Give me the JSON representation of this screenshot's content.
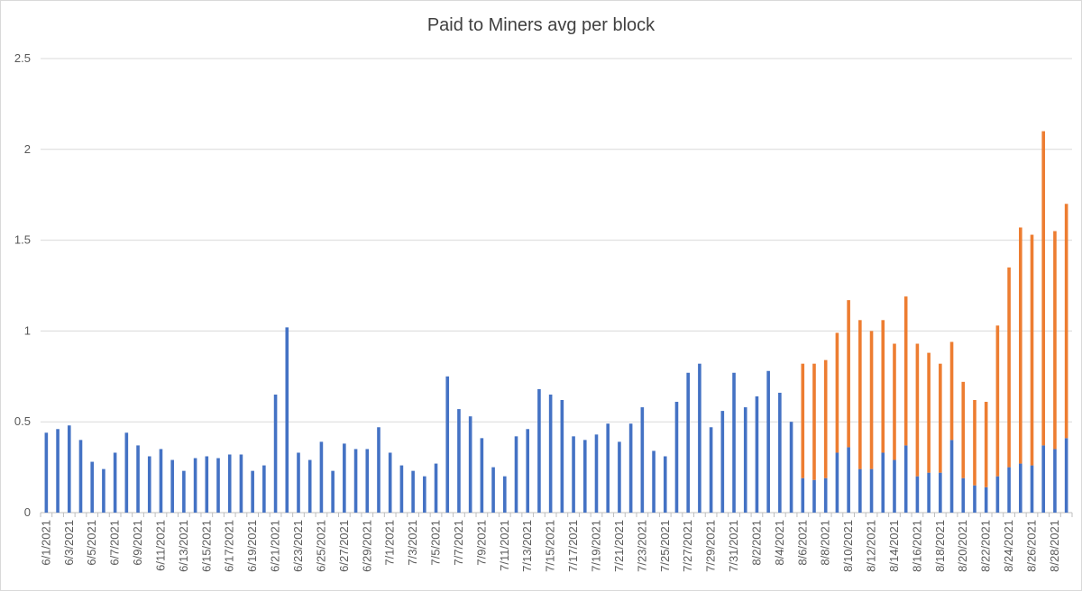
{
  "chart_data": {
    "type": "bar",
    "stacked": true,
    "title": "Paid to Miners avg per block",
    "xlabel": "",
    "ylabel": "",
    "ylim": [
      0,
      2.5
    ],
    "yticks": [
      "0",
      "0.5",
      "1",
      "1.5",
      "2",
      "2.5"
    ],
    "grid": true,
    "legend": "none",
    "categories": [
      "6/1/2021",
      "6/2/2021",
      "6/3/2021",
      "6/4/2021",
      "6/5/2021",
      "6/6/2021",
      "6/7/2021",
      "6/8/2021",
      "6/9/2021",
      "6/10/2021",
      "6/11/2021",
      "6/12/2021",
      "6/13/2021",
      "6/14/2021",
      "6/15/2021",
      "6/16/2021",
      "6/17/2021",
      "6/18/2021",
      "6/19/2021",
      "6/20/2021",
      "6/21/2021",
      "6/22/2021",
      "6/23/2021",
      "6/24/2021",
      "6/25/2021",
      "6/26/2021",
      "6/27/2021",
      "6/28/2021",
      "6/29/2021",
      "6/30/2021",
      "7/1/2021",
      "7/2/2021",
      "7/3/2021",
      "7/4/2021",
      "7/5/2021",
      "7/6/2021",
      "7/7/2021",
      "7/8/2021",
      "7/9/2021",
      "7/10/2021",
      "7/11/2021",
      "7/12/2021",
      "7/13/2021",
      "7/14/2021",
      "7/15/2021",
      "7/16/2021",
      "7/17/2021",
      "7/18/2021",
      "7/19/2021",
      "7/20/2021",
      "7/21/2021",
      "7/22/2021",
      "7/23/2021",
      "7/24/2021",
      "7/25/2021",
      "7/26/2021",
      "7/27/2021",
      "7/28/2021",
      "7/29/2021",
      "7/30/2021",
      "7/31/2021",
      "8/1/2021",
      "8/2/2021",
      "8/3/2021",
      "8/4/2021",
      "8/5/2021",
      "8/6/2021",
      "8/7/2021",
      "8/8/2021",
      "8/9/2021",
      "8/10/2021",
      "8/11/2021",
      "8/12/2021",
      "8/13/2021",
      "8/14/2021",
      "8/15/2021",
      "8/16/2021",
      "8/17/2021",
      "8/18/2021",
      "8/19/2021",
      "8/20/2021",
      "8/21/2021",
      "8/22/2021",
      "8/23/2021",
      "8/24/2021",
      "8/25/2021",
      "8/26/2021",
      "8/27/2021",
      "8/28/2021",
      "8/29/2021"
    ],
    "tick_labels": [
      "6/1/2021",
      "6/3/2021",
      "6/5/2021",
      "6/7/2021",
      "6/9/2021",
      "6/11/2021",
      "6/13/2021",
      "6/15/2021",
      "6/17/2021",
      "6/19/2021",
      "6/21/2021",
      "6/23/2021",
      "6/25/2021",
      "6/27/2021",
      "6/29/2021",
      "7/1/2021",
      "7/3/2021",
      "7/5/2021",
      "7/7/2021",
      "7/9/2021",
      "7/11/2021",
      "7/13/2021",
      "7/15/2021",
      "7/17/2021",
      "7/19/2021",
      "7/21/2021",
      "7/23/2021",
      "7/25/2021",
      "7/27/2021",
      "7/29/2021",
      "7/31/2021",
      "8/2/2021",
      "8/4/2021",
      "8/6/2021",
      "8/8/2021",
      "8/10/2021",
      "8/12/2021",
      "8/14/2021",
      "8/16/2021",
      "8/18/2021",
      "8/20/2021",
      "8/22/2021",
      "8/24/2021",
      "8/26/2021",
      "8/28/2021"
    ],
    "series": [
      {
        "color": "#4472c4",
        "values": [
          0.44,
          0.46,
          0.48,
          0.4,
          0.28,
          0.24,
          0.33,
          0.44,
          0.37,
          0.31,
          0.35,
          0.29,
          0.23,
          0.3,
          0.31,
          0.3,
          0.32,
          0.32,
          0.23,
          0.26,
          0.65,
          1.02,
          0.33,
          0.29,
          0.39,
          0.23,
          0.38,
          0.35,
          0.35,
          0.47,
          0.33,
          0.26,
          0.23,
          0.2,
          0.27,
          0.75,
          0.57,
          0.53,
          0.41,
          0.25,
          0.2,
          0.42,
          0.46,
          0.68,
          0.65,
          0.62,
          0.42,
          0.4,
          0.43,
          0.49,
          0.39,
          0.49,
          0.58,
          0.34,
          0.31,
          0.61,
          0.77,
          0.82,
          0.47,
          0.56,
          0.77,
          0.58,
          0.64,
          0.78,
          0.66,
          0.5,
          0.19,
          0.18,
          0.19,
          0.33,
          0.36,
          0.24,
          0.24,
          0.33,
          0.29,
          0.37,
          0.2,
          0.22,
          0.22,
          0.4,
          0.19,
          0.15,
          0.14,
          0.2,
          0.25,
          0.27,
          0.26,
          0.37,
          0.35,
          0.41
        ]
      },
      {
        "color": "#ed7d31",
        "values": [
          0,
          0,
          0,
          0,
          0,
          0,
          0,
          0,
          0,
          0,
          0,
          0,
          0,
          0,
          0,
          0,
          0,
          0,
          0,
          0,
          0,
          0,
          0,
          0,
          0,
          0,
          0,
          0,
          0,
          0,
          0,
          0,
          0,
          0,
          0,
          0,
          0,
          0,
          0,
          0,
          0,
          0,
          0,
          0,
          0,
          0,
          0,
          0,
          0,
          0,
          0,
          0,
          0,
          0,
          0,
          0,
          0,
          0,
          0,
          0,
          0,
          0,
          0,
          0,
          0,
          0,
          0.63,
          0.64,
          0.65,
          0.66,
          0.81,
          0.82,
          0.76,
          0.73,
          0.64,
          0.82,
          0.73,
          0.66,
          0.6,
          0.54,
          0.53,
          0.47,
          0.47,
          0.83,
          1.1,
          1.3,
          1.27,
          1.73,
          1.2,
          1.29
        ]
      }
    ]
  }
}
